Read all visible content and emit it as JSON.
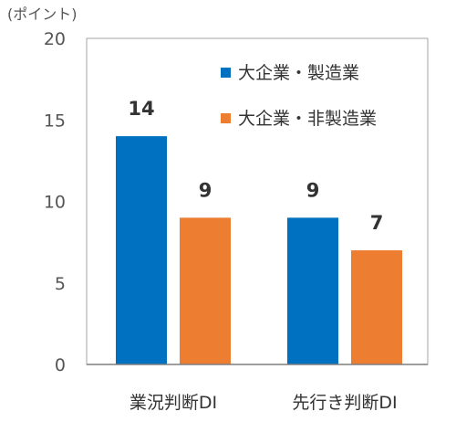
{
  "chart_data": {
    "type": "bar",
    "unit_label": "(ポイント)",
    "categories": [
      "業況判断DI",
      "先行き判断DI"
    ],
    "series": [
      {
        "name": "大企業・製造業",
        "values": [
          14,
          9
        ],
        "color": "#0070C0"
      },
      {
        "name": "大企業・非製造業",
        "values": [
          9,
          7
        ],
        "color": "#ED7D31"
      }
    ],
    "ylim": [
      0,
      20
    ],
    "yticks": [
      0,
      5,
      10,
      15,
      20
    ],
    "legend_position": "top-right",
    "grid": false,
    "data_labels": true
  }
}
